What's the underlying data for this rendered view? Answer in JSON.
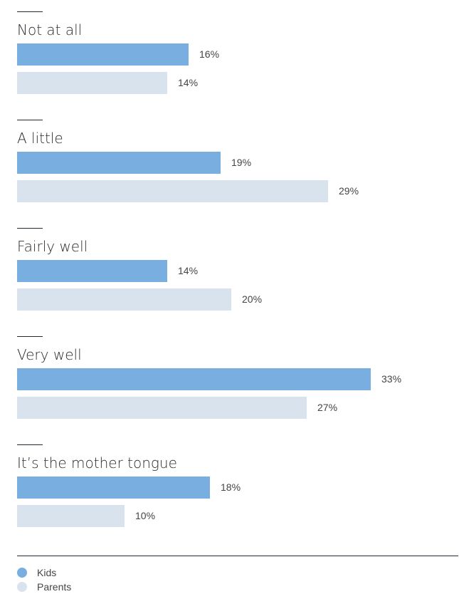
{
  "chart_data": {
    "type": "bar",
    "orientation": "horizontal",
    "categories": [
      "Not at all",
      "A little",
      "Fairly well",
      "Very well",
      "It’s the mother tongue"
    ],
    "series": [
      {
        "name": "Kids",
        "values": [
          16,
          19,
          14,
          33,
          18
        ],
        "labels": [
          "16%",
          "19%",
          "14%",
          "33%",
          "18%"
        ],
        "color": "#78aee0"
      },
      {
        "name": "Parents",
        "values": [
          14,
          29,
          20,
          27,
          10
        ],
        "labels": [
          "14%",
          "29%",
          "20%",
          "27%",
          "10%"
        ],
        "color": "#d8e3ee"
      }
    ],
    "unit": "%",
    "xlim": [
      0,
      33
    ],
    "legend_position": "bottom-left",
    "grid": false
  }
}
